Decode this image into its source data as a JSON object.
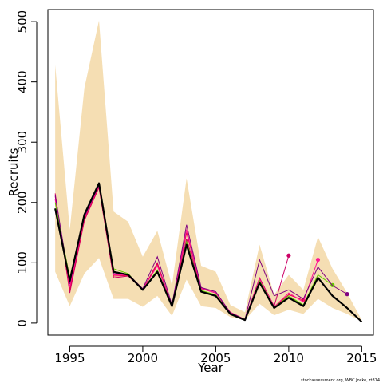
{
  "chart_data": {
    "type": "line",
    "xlabel": "Year",
    "ylabel": "Recruits",
    "xlim": [
      1993.5,
      2015.8
    ],
    "ylim": [
      -20,
      520
    ],
    "xticks": [
      1995,
      2000,
      2005,
      2010,
      2015
    ],
    "yticks": [
      0,
      100,
      200,
      300,
      400,
      500
    ],
    "grid": false,
    "credit": "stockassessment.org, WBC Jocke, rt814",
    "colors": {
      "band": "#F5DEB3",
      "main": "#000000"
    },
    "x": [
      1994,
      1995,
      1996,
      1997,
      1998,
      1999,
      2000,
      2001,
      2002,
      2003,
      2004,
      2005,
      2006,
      2007,
      2008,
      2009,
      2010,
      2011,
      2012,
      2013,
      2014,
      2015
    ],
    "band": {
      "lower": [
        85,
        28,
        82,
        108,
        40,
        40,
        27,
        45,
        12,
        72,
        28,
        25,
        10,
        5,
        32,
        13,
        22,
        15,
        40,
        25,
        15,
        3
      ],
      "upper": [
        428,
        155,
        390,
        502,
        185,
        168,
        110,
        153,
        62,
        240,
        95,
        85,
        30,
        18,
        130,
        47,
        80,
        55,
        143,
        90,
        50,
        5
      ]
    },
    "main_series": {
      "name": "",
      "values": [
        190,
        70,
        180,
        232,
        85,
        80,
        55,
        85,
        28,
        130,
        52,
        45,
        15,
        5,
        67,
        25,
        42,
        28,
        75,
        45,
        25,
        2
      ]
    },
    "retro_series": [
      {
        "color": "#CC0066",
        "x": [
          1994,
          1995,
          1996,
          1997,
          1998,
          1999,
          2000,
          2001,
          2002,
          2003,
          2004,
          2005,
          2006,
          2007,
          2008,
          2009,
          2010
        ],
        "values": [
          215,
          50,
          170,
          225,
          75,
          78,
          55,
          100,
          28,
          140,
          57,
          50,
          18,
          6,
          75,
          28,
          112
        ],
        "end_marker": true
      },
      {
        "color": "#E8004C",
        "x": [
          1994,
          1995,
          1996,
          1997,
          1998,
          1999,
          2000,
          2001,
          2002,
          2003,
          2004,
          2005,
          2006,
          2007,
          2008,
          2009,
          2010,
          2011
        ],
        "values": [
          210,
          55,
          172,
          226,
          78,
          79,
          56,
          98,
          28,
          150,
          58,
          50,
          17,
          6,
          72,
          27,
          47,
          38
        ],
        "end_marker": true
      },
      {
        "color": "#FF1493",
        "x": [
          1994,
          1995,
          1996,
          1997,
          1998,
          1999,
          2000,
          2001,
          2002,
          2003,
          2004,
          2005,
          2006,
          2007,
          2008,
          2009,
          2010,
          2011,
          2012
        ],
        "values": [
          205,
          60,
          175,
          228,
          80,
          80,
          56,
          95,
          29,
          155,
          58,
          50,
          17,
          6,
          73,
          27,
          50,
          35,
          105
        ],
        "end_marker": true
      },
      {
        "color": "#66CC00",
        "x": [
          1994,
          1995,
          1996,
          1997,
          1998,
          1999,
          2000,
          2001,
          2002,
          2003,
          2004,
          2005,
          2006,
          2007,
          2008,
          2009,
          2010,
          2011,
          2012,
          2013
        ],
        "values": [
          200,
          75,
          178,
          230,
          90,
          82,
          55,
          88,
          28,
          135,
          54,
          47,
          16,
          6,
          70,
          26,
          45,
          30,
          80,
          63
        ],
        "end_marker": true
      },
      {
        "color": "#800080",
        "x": [
          1994,
          1995,
          1996,
          1997,
          1998,
          1999,
          2000,
          2001,
          2002,
          2003,
          2004,
          2005,
          2006,
          2007,
          2008,
          2009,
          2010,
          2011,
          2012,
          2013,
          2014
        ],
        "values": [
          212,
          65,
          176,
          229,
          82,
          81,
          57,
          110,
          30,
          163,
          59,
          52,
          17,
          6,
          105,
          45,
          55,
          40,
          93,
          62,
          48
        ],
        "end_marker": true
      }
    ]
  }
}
